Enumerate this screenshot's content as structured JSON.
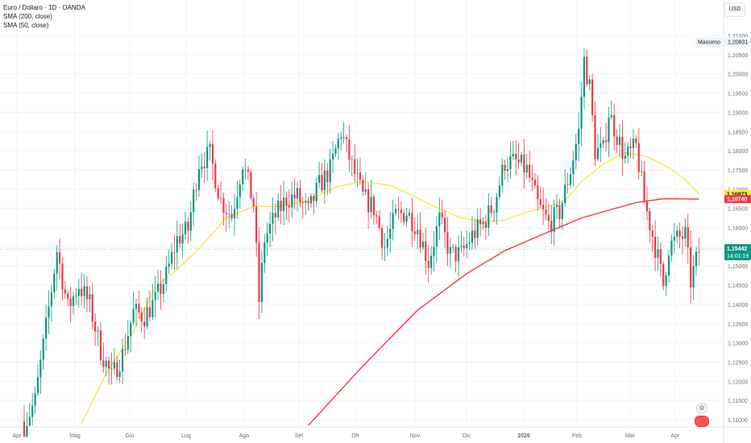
{
  "legend": {
    "title": "Euro / Dollaro · 1D · OANDA",
    "sma200": "SMA (200, close)",
    "sma50": "SMA (50, close)"
  },
  "currency_label": "USD",
  "colors": {
    "up": "#089981",
    "down": "#f23645",
    "sma200": "#f23645",
    "sma50": "#f6e83d",
    "last": "#089981",
    "grid": "#f0f3fa",
    "axis_text": "#6a6d78",
    "price_line": "#089981"
  },
  "chart_data": {
    "type": "candlestick",
    "title": "Euro / Dollaro · 1D · OANDA",
    "x_labels": [
      "Apr",
      "Mag",
      "Giu",
      "Lug",
      "Ago",
      "Set",
      "Ott",
      "Nov",
      "Dic",
      "2026",
      "Feb",
      "Mar",
      "Apr"
    ],
    "y_ticks": [
      "1,21000",
      "1,20500",
      "1,20000",
      "1,19500",
      "1,19000",
      "1,18500",
      "1,18000",
      "1,17500",
      "1,17000",
      "1,16500",
      "1,16000",
      "1,15500",
      "1,15000",
      "1,14500",
      "1,14000",
      "1,13500",
      "1,13000",
      "1,12500",
      "1,12000",
      "1,11500",
      "1,11000"
    ],
    "ylim": [
      1.1085,
      1.2135
    ],
    "max_label": "Massimo",
    "max_value": "1,20831",
    "last_price": "1,15442",
    "countdown": "14:01:19",
    "sma50_last": "1,16873",
    "sma200_last": "1,16740",
    "anchors": [
      [
        0,
        1.1085
      ],
      [
        4,
        1.115
      ],
      [
        8,
        1.134
      ],
      [
        12,
        1.154
      ],
      [
        16,
        1.139
      ],
      [
        20,
        1.145
      ],
      [
        24,
        1.14
      ],
      [
        28,
        1.128
      ],
      [
        32,
        1.121
      ],
      [
        36,
        1.127
      ],
      [
        40,
        1.138
      ],
      [
        44,
        1.137
      ],
      [
        48,
        1.141
      ],
      [
        52,
        1.1475
      ],
      [
        56,
        1.157
      ],
      [
        60,
        1.1595
      ],
      [
        64,
        1.177
      ],
      [
        68,
        1.179
      ],
      [
        72,
        1.167
      ],
      [
        76,
        1.163
      ],
      [
        80,
        1.177
      ],
      [
        84,
        1.166
      ],
      [
        86,
        1.141
      ],
      [
        88,
        1.157
      ],
      [
        92,
        1.163
      ],
      [
        96,
        1.1675
      ],
      [
        100,
        1.168
      ],
      [
        104,
        1.164
      ],
      [
        108,
        1.171
      ],
      [
        112,
        1.175
      ],
      [
        116,
        1.185
      ],
      [
        120,
        1.176
      ],
      [
        124,
        1.168
      ],
      [
        128,
        1.165
      ],
      [
        132,
        1.155
      ],
      [
        136,
        1.163
      ],
      [
        140,
        1.164
      ],
      [
        144,
        1.16
      ],
      [
        148,
        1.151
      ],
      [
        152,
        1.162
      ],
      [
        156,
        1.153
      ],
      [
        160,
        1.153
      ],
      [
        164,
        1.158
      ],
      [
        168,
        1.161
      ],
      [
        172,
        1.166
      ],
      [
        176,
        1.177
      ],
      [
        180,
        1.177
      ],
      [
        184,
        1.175
      ],
      [
        188,
        1.166
      ],
      [
        192,
        1.161
      ],
      [
        196,
        1.164
      ],
      [
        200,
        1.175
      ],
      [
        203,
        1.185
      ],
      [
        205,
        1.2035
      ],
      [
        207,
        1.1965
      ],
      [
        209,
        1.18
      ],
      [
        212,
        1.18
      ],
      [
        214,
        1.19
      ],
      [
        217,
        1.184
      ],
      [
        220,
        1.178
      ],
      [
        224,
        1.181
      ],
      [
        227,
        1.167
      ],
      [
        230,
        1.158
      ],
      [
        232,
        1.152
      ],
      [
        234,
        1.145
      ],
      [
        236,
        1.155
      ],
      [
        239,
        1.157
      ],
      [
        242,
        1.158
      ],
      [
        244,
        1.146
      ],
      [
        247,
        1.154
      ]
    ],
    "sma50": [
      [
        21,
        1.109
      ],
      [
        30,
        1.122
      ],
      [
        40,
        1.133
      ],
      [
        48,
        1.1445
      ],
      [
        56,
        1.149
      ],
      [
        64,
        1.1545
      ],
      [
        74,
        1.1625
      ],
      [
        84,
        1.1655
      ],
      [
        94,
        1.1655
      ],
      [
        104,
        1.167
      ],
      [
        114,
        1.1705
      ],
      [
        124,
        1.172
      ],
      [
        134,
        1.171
      ],
      [
        140,
        1.169
      ],
      [
        150,
        1.1655
      ],
      [
        160,
        1.1625
      ],
      [
        168,
        1.1615
      ],
      [
        176,
        1.162
      ],
      [
        184,
        1.164
      ],
      [
        192,
        1.1655
      ],
      [
        198,
        1.167
      ],
      [
        204,
        1.172
      ],
      [
        212,
        1.1765
      ],
      [
        220,
        1.1795
      ],
      [
        228,
        1.1785
      ],
      [
        236,
        1.1755
      ],
      [
        242,
        1.1725
      ],
      [
        247,
        1.1687
      ]
    ],
    "sma200": [
      [
        104,
        1.1085
      ],
      [
        124,
        1.124
      ],
      [
        144,
        1.1385
      ],
      [
        162,
        1.148
      ],
      [
        176,
        1.154
      ],
      [
        194,
        1.1595
      ],
      [
        204,
        1.1625
      ],
      [
        214,
        1.1645
      ],
      [
        224,
        1.1665
      ],
      [
        234,
        1.1675
      ],
      [
        247,
        1.1674
      ]
    ]
  }
}
